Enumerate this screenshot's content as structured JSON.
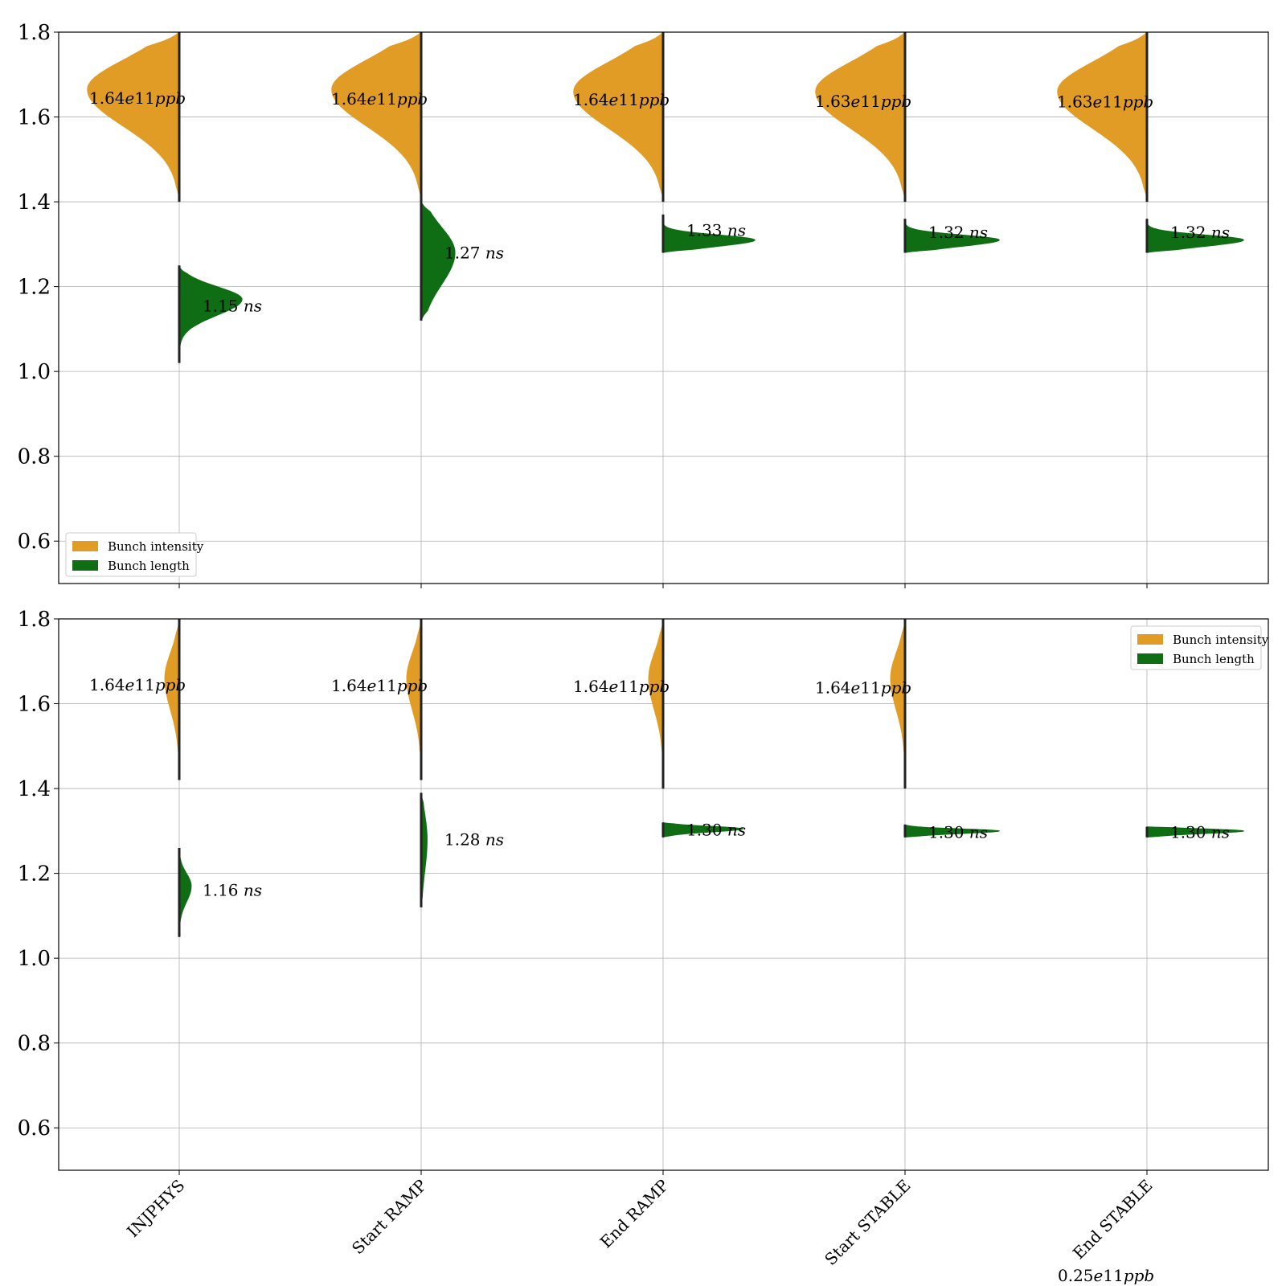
{
  "chart_data": [
    {
      "type": "violin",
      "categories": [
        "INJPHYS",
        "Start RAMP",
        "End RAMP",
        "Start STABLE",
        "End STABLE"
      ],
      "ylim": [
        0.5,
        1.8
      ],
      "yticks": [
        "0.6",
        "0.8",
        "1.0",
        "1.2",
        "1.4",
        "1.6",
        "1.8"
      ],
      "grid": true,
      "legend": {
        "position": "lower-left",
        "entries": [
          {
            "label": "Bunch intensity",
            "color": "#e09c24"
          },
          {
            "label": "Bunch length",
            "color": "#0f6e14"
          }
        ]
      },
      "series": [
        {
          "name": "Bunch intensity",
          "color": "#e09c24",
          "values": [
            1.64,
            1.64,
            1.64,
            1.63,
            1.63
          ],
          "labels": [
            "1.64e11ppb",
            "1.64e11ppb",
            "1.64e11ppb",
            "1.63e11ppb",
            "1.63e11ppb"
          ],
          "label_y": [
            1.645,
            1.643,
            1.641,
            1.637,
            1.636
          ],
          "ranges": [
            [
              1.4,
              1.8
            ],
            [
              1.4,
              1.8
            ],
            [
              1.4,
              1.8
            ],
            [
              1.4,
              1.8
            ],
            [
              1.4,
              1.8
            ]
          ],
          "peaks": [
            1.665,
            1.665,
            1.66,
            1.66,
            1.66
          ],
          "widths": [
            0.38,
            0.37,
            0.37,
            0.37,
            0.37
          ],
          "spreads": [
            0.07,
            0.07,
            0.07,
            0.07,
            0.07
          ]
        },
        {
          "name": "Bunch length",
          "color": "#0f6e14",
          "values": [
            1.15,
            1.27,
            1.33,
            1.32,
            1.32
          ],
          "labels": [
            "1.15 ns",
            "1.27 ns",
            "1.33 ns",
            "1.32 ns",
            "1.32 ns"
          ],
          "label_y": [
            1.155,
            1.28,
            1.333,
            1.328,
            1.328
          ],
          "ranges": [
            [
              1.02,
              1.25
            ],
            [
              1.12,
              1.4
            ],
            [
              1.28,
              1.37
            ],
            [
              1.28,
              1.36
            ],
            [
              1.28,
              1.36
            ]
          ],
          "peaks": [
            1.17,
            1.28,
            1.31,
            1.31,
            1.31
          ],
          "widths": [
            0.26,
            0.14,
            0.38,
            0.39,
            0.4
          ],
          "spreads": [
            0.03,
            0.06,
            0.012,
            0.012,
            0.012
          ]
        }
      ]
    },
    {
      "type": "violin",
      "categories": [
        "INJPHYS",
        "Start RAMP",
        "End RAMP",
        "Start STABLE",
        "End STABLE"
      ],
      "ylim": [
        0.5,
        1.8
      ],
      "yticks": [
        "0.6",
        "0.8",
        "1.0",
        "1.2",
        "1.4",
        "1.6",
        "1.8"
      ],
      "grid": true,
      "legend": {
        "position": "upper-right",
        "entries": [
          {
            "label": "Bunch intensity",
            "color": "#e09c24"
          },
          {
            "label": "Bunch length",
            "color": "#0f6e14"
          }
        ]
      },
      "series": [
        {
          "name": "Bunch intensity",
          "color": "#e09c24",
          "values": [
            1.64,
            1.64,
            1.64,
            1.64,
            null
          ],
          "labels": [
            "1.64e11ppb",
            "1.64e11ppb",
            "1.64e11ppb",
            "1.64e11ppb",
            ""
          ],
          "label_y": [
            1.645,
            1.643,
            1.641,
            1.638,
            null
          ],
          "ranges": [
            [
              1.42,
              1.8
            ],
            [
              1.42,
              1.8
            ],
            [
              1.4,
              1.8
            ],
            [
              1.4,
              1.8
            ],
            null
          ],
          "peaks": [
            1.66,
            1.66,
            1.66,
            1.66,
            null
          ],
          "widths": [
            0.06,
            0.06,
            0.06,
            0.06,
            0
          ],
          "spreads": [
            0.06,
            0.06,
            0.06,
            0.06,
            0.06
          ]
        },
        {
          "name": "Bunch length",
          "color": "#0f6e14",
          "values": [
            1.16,
            1.28,
            1.3,
            1.3,
            1.3
          ],
          "labels": [
            "1.16 ns",
            "1.28 ns",
            "1.30 ns",
            "1.30 ns",
            "1.30 ns"
          ],
          "label_y": [
            1.16,
            1.28,
            1.303,
            1.297,
            1.297
          ],
          "ranges": [
            [
              1.05,
              1.26
            ],
            [
              1.12,
              1.39
            ],
            [
              1.285,
              1.32
            ],
            [
              1.285,
              1.315
            ],
            [
              1.285,
              1.31
            ]
          ],
          "peaks": [
            1.17,
            1.28,
            1.305,
            1.3,
            1.3
          ],
          "widths": [
            0.05,
            0.025,
            0.33,
            0.39,
            0.4
          ],
          "spreads": [
            0.03,
            0.06,
            0.006,
            0.005,
            0.005
          ]
        }
      ]
    }
  ],
  "scale_note": "0.25e11ppb"
}
